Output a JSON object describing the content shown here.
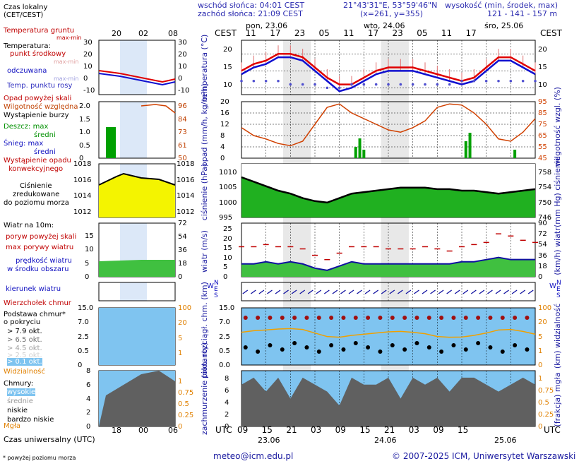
{
  "header": {
    "sunrise": "wschód słońca: 04:01 CEST",
    "sunset": "zachód słońca: 21:09 CEST",
    "coords": "21°43'31\"E, 53°59'46\"N",
    "grid": "(x=261,  y=355)",
    "alt_title": "wysokość (min, środek, max)",
    "alt_values": "121 - 141 - 157 m"
  },
  "time_axis": {
    "cest_label": "CEST",
    "utc_label": "UTC",
    "days": [
      "pon, 23.06",
      "wto, 24.06",
      "śro, 25.06"
    ],
    "day_dates": [
      "23.06",
      "24.06",
      "25.06"
    ],
    "cest_hours": [
      "11",
      "17",
      "23",
      "05",
      "11",
      "17",
      "23",
      "05",
      "11",
      "17"
    ],
    "utc_hours": [
      "09",
      "15",
      "21",
      "03",
      "09",
      "15",
      "21",
      "03",
      "09",
      "15"
    ],
    "legend_local_label": "Czas lokalny",
    "legend_local_sub": "(CET/CEST)",
    "legend_local_hours": [
      "20",
      "02",
      "08"
    ],
    "legend_utc_label": "Czas uniwersalny (UTC)",
    "legend_utc_hours": [
      "18",
      "00",
      "06"
    ]
  },
  "legend": {
    "temp": {
      "ground": "Temperatura gruntu",
      "ground_sub": "max-min",
      "temperature": "Temperatura:",
      "mid": "punkt środkowy",
      "maxmin": "max-min",
      "felt": "odczuwana",
      "felt_maxmin": "max-min",
      "dew": "Temp. punktu rosy",
      "ticks_l": [
        "30",
        "20",
        "10",
        "0",
        "-10"
      ],
      "ticks_r": [
        "30",
        "20",
        "10",
        "0",
        "-10"
      ]
    },
    "precip": {
      "over": "Opad powyżej skali",
      "hum": "Wilgotność względna",
      "storm": "Wystąpienie burzy",
      "rain": "Deszcz: max",
      "rain_mid": "średni",
      "snow": "Śnieg: max",
      "snow_mid": "średni",
      "occur1": "Wystąpienie opadu",
      "occur2": "konwekcyjnego",
      "ticks_l": [
        "2.0",
        "1.5",
        "1.0",
        "0.5",
        "0"
      ],
      "ticks_r": [
        "96",
        "84",
        "73",
        "61",
        "50"
      ]
    },
    "pressure": {
      "l1": "Ciśnienie",
      "l2": "zredukowane",
      "l3": "do poziomu morza",
      "ticks": [
        "1018",
        "1016",
        "1014",
        "1012"
      ]
    },
    "wind": {
      "title": "Wiatr na 10m:",
      "gust_over": "poryw powyżej skali",
      "gust_max": "max porywy wiatru",
      "speed": "prędkość wiatru",
      "speed_sub": "w środku obszaru",
      "ticks_l": [
        "15",
        "10",
        "5",
        "0"
      ],
      "ticks_r": [
        "72",
        "54",
        "36",
        "18",
        "0"
      ]
    },
    "dir": {
      "label": "kierunek wiatru"
    },
    "cloud_base": {
      "top": "Wierzchołek chmur",
      "base1": "Podstawa chmur*",
      "base2": "o pokryciu",
      "o79": "> 7.9 okt.",
      "o65": "> 6.5 okt.",
      "o45": "> 4.5 okt.",
      "o25": "> 2.5 okt.",
      "o01": "> 0.1 okt.",
      "vis": "Widzialność",
      "ticks_l": [
        "15.0",
        "7.0",
        "2.5",
        "0.5",
        "0"
      ],
      "ticks_r": [
        "100",
        "20",
        "5",
        "1"
      ]
    },
    "clouds": {
      "title": "Chmury:",
      "high": "wysokie",
      "mid": "średnie",
      "low": "niskie",
      "vlow": "bardzo niskie",
      "fog": "Mgła",
      "ticks_l": [
        "8",
        "6",
        "4",
        "2",
        "0"
      ],
      "ticks_r": [
        "1",
        "0.75",
        "0.5",
        "0.25",
        "0"
      ]
    }
  },
  "panels": {
    "temp": {
      "label": "temperatura (°C)",
      "ticks": [
        "20",
        "15",
        "10"
      ]
    },
    "precip": {
      "label_l": "opad (mm/h, kg/m²h)",
      "label_r": "wilgotność wzgl. (%)",
      "ticks_l": [
        "20",
        "16",
        "12",
        "8",
        "4",
        "0"
      ],
      "ticks_r": [
        "95",
        "85",
        "75",
        "65",
        "55",
        "45"
      ]
    },
    "pressure": {
      "label_l": "ciśnienie (hPa)",
      "label_r": "(mm Hg) ciśnienie",
      "ticks_l": [
        "1010",
        "1005",
        "1000",
        "995"
      ],
      "ticks_r": [
        "758",
        "754",
        "750",
        "746"
      ]
    },
    "wind": {
      "label_l": "wiatr (m/s)",
      "label_r": "(km/h) wiatr",
      "ticks_l": [
        "25",
        "20",
        "15",
        "10",
        "5",
        "0"
      ],
      "ticks_r": [
        "90",
        "72",
        "54",
        "36",
        "18",
        "0"
      ]
    },
    "dir": {
      "n": "N",
      "w": "W",
      "e": "E",
      "s": "S"
    },
    "cloud": {
      "label_l": "pion. rozciągł. chm. (km)",
      "label_r": "(km) widzialność",
      "ticks_l": [
        "15.0",
        "7.0",
        "2.5",
        "0.5",
        "0.0"
      ],
      "ticks_r": [
        "100",
        "20",
        "5",
        "1",
        "0"
      ]
    },
    "cover": {
      "label_l": "zachmurzenie (oktanty)",
      "label_r": "(frakcja) mgła",
      "ticks_l": [
        "8",
        "6",
        "4",
        "2",
        "0"
      ],
      "ticks_r": [
        "1",
        "0.75",
        "0.5",
        "0.25",
        "0"
      ]
    }
  },
  "footer": {
    "note": "* powyżej poziomu morza",
    "email": "meteo@icm.edu.pl",
    "copyright": "© 2007-2025 ICM, Uniwersytet Warszawski"
  },
  "colors": {
    "temp": "#e00000",
    "felt": "#1010d0",
    "hum": "#d04000",
    "pressure": "#f4f400",
    "wind_fill": "#40d040",
    "sky": "#7fc4f0",
    "night": "#e8e8e8"
  },
  "chart_data": [
    {
      "type": "line",
      "title": "temperatura",
      "ylabel": "temperatura (°C)",
      "ylim": [
        8,
        24
      ],
      "x": [
        0,
        3,
        6,
        9,
        12,
        15,
        18,
        21,
        24,
        27,
        30,
        33,
        36,
        39,
        42,
        45,
        48,
        51,
        54,
        57,
        60,
        63,
        66,
        69,
        72
      ],
      "series": [
        {
          "name": "punkt środkowy",
          "values": [
            15,
            17,
            18,
            20,
            20,
            19,
            16,
            13,
            11,
            11,
            13,
            15,
            16,
            16,
            16,
            15,
            14,
            13,
            12,
            13,
            16,
            19,
            19,
            17,
            15
          ]
        },
        {
          "name": "odczuwana",
          "values": [
            14,
            16,
            17,
            19,
            19,
            18,
            15,
            12,
            9,
            10,
            12,
            14,
            15,
            15,
            15,
            14,
            13,
            12,
            11,
            12,
            15,
            18,
            18,
            16,
            14
          ]
        },
        {
          "name": "Temp. punktu rosy",
          "values": [
            12,
            12,
            12,
            12,
            11,
            11,
            11,
            10,
            10,
            11,
            11,
            11,
            11,
            11,
            11,
            11,
            11,
            11,
            12,
            12,
            12,
            12,
            12,
            12,
            12
          ]
        }
      ]
    },
    {
      "type": "line",
      "title": "wilgotność",
      "ylabel": "wilgotność wzgl. (%)",
      "ylim": [
        45,
        95
      ],
      "x": [
        0,
        3,
        6,
        9,
        12,
        15,
        18,
        21,
        24,
        27,
        30,
        33,
        36,
        39,
        42,
        45,
        48,
        51,
        54,
        57,
        60,
        63,
        66,
        69,
        72
      ],
      "values": [
        72,
        65,
        62,
        58,
        56,
        60,
        75,
        90,
        93,
        85,
        80,
        75,
        70,
        68,
        72,
        78,
        90,
        93,
        92,
        85,
        75,
        62,
        60,
        68,
        80
      ]
    },
    {
      "type": "area",
      "title": "ciśnienie",
      "ylabel": "ciśnienie (hPa)",
      "ylim": [
        995,
        1013
      ],
      "x": [
        0,
        3,
        6,
        9,
        12,
        15,
        18,
        21,
        24,
        27,
        30,
        33,
        36,
        39,
        42,
        45,
        48,
        51,
        54,
        57,
        60,
        63,
        66,
        69,
        72
      ],
      "values": [
        1008.5,
        1007,
        1005.5,
        1004,
        1003,
        1001.5,
        1000.5,
        1000,
        1001.5,
        1003,
        1003.5,
        1004,
        1004.5,
        1005,
        1005,
        1005,
        1004.5,
        1004.5,
        1004,
        1004,
        1003.5,
        1003,
        1003.5,
        1004,
        1004.5
      ]
    },
    {
      "type": "area",
      "title": "wiatr",
      "ylabel": "wiatr (m/s)",
      "ylim": [
        0,
        25
      ],
      "x": [
        0,
        3,
        6,
        9,
        12,
        15,
        18,
        21,
        24,
        27,
        30,
        33,
        36,
        39,
        42,
        45,
        48,
        51,
        54,
        57,
        60,
        63,
        66,
        69,
        72
      ],
      "series": [
        {
          "name": "prędkość wiatru",
          "values": [
            6,
            6,
            7,
            6,
            7,
            6,
            4,
            3,
            5,
            7,
            6,
            6,
            6,
            6,
            6,
            6,
            6,
            6,
            7,
            7,
            8,
            9,
            8,
            8,
            8
          ]
        },
        {
          "name": "max porywy wiatru",
          "values": [
            14,
            14,
            15,
            14,
            14,
            13,
            10,
            8,
            11,
            14,
            14,
            14,
            13,
            13,
            13,
            14,
            13,
            12,
            14,
            15,
            16,
            20,
            19,
            17,
            16
          ]
        }
      ]
    },
    {
      "type": "area",
      "title": "zachmurzenie",
      "ylabel": "zachmurzenie (oktanty)",
      "ylim": [
        0,
        8
      ],
      "x": [
        0,
        3,
        6,
        9,
        12,
        15,
        18,
        21,
        24,
        27,
        30,
        33,
        36,
        39,
        42,
        45,
        48,
        51,
        54,
        57,
        60,
        63,
        66,
        69,
        72
      ],
      "values": [
        6,
        7,
        5,
        7,
        4,
        7,
        6,
        5,
        3,
        7,
        6,
        6,
        7,
        4,
        7,
        6,
        7,
        5,
        7,
        7,
        6,
        5,
        6,
        7,
        6
      ]
    }
  ]
}
